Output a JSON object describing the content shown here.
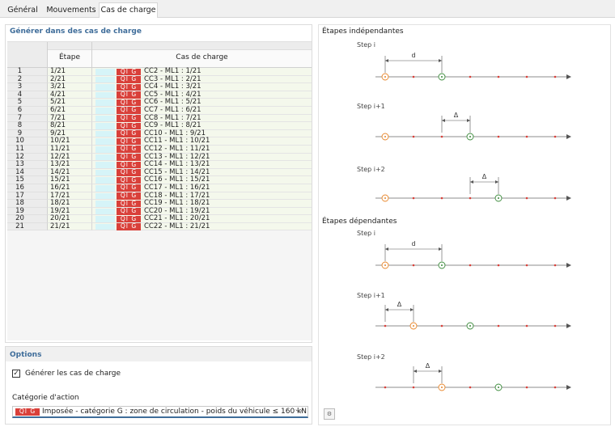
{
  "tabs": [
    {
      "label": "Général",
      "active": false
    },
    {
      "label": "Mouvements",
      "active": false
    },
    {
      "label": "Cas de charge",
      "active": true
    }
  ],
  "generate": {
    "title": "Générer dans des cas de charge",
    "columns": {
      "etape": "Étape",
      "cas": "Cas de charge"
    },
    "badge": "QI G",
    "rows": [
      {
        "num": "1",
        "etape": "1/21",
        "cas": "CC2 - ML1 : 1/21"
      },
      {
        "num": "2",
        "etape": "2/21",
        "cas": "CC3 - ML1 : 2/21"
      },
      {
        "num": "3",
        "etape": "3/21",
        "cas": "CC4 - ML1 : 3/21"
      },
      {
        "num": "4",
        "etape": "4/21",
        "cas": "CC5 - ML1 : 4/21"
      },
      {
        "num": "5",
        "etape": "5/21",
        "cas": "CC6 - ML1 : 5/21"
      },
      {
        "num": "6",
        "etape": "6/21",
        "cas": "CC7 - ML1 : 6/21"
      },
      {
        "num": "7",
        "etape": "7/21",
        "cas": "CC8 - ML1 : 7/21"
      },
      {
        "num": "8",
        "etape": "8/21",
        "cas": "CC9 - ML1 : 8/21"
      },
      {
        "num": "9",
        "etape": "9/21",
        "cas": "CC10 - ML1 : 9/21"
      },
      {
        "num": "10",
        "etape": "10/21",
        "cas": "CC11 - ML1 : 10/21"
      },
      {
        "num": "11",
        "etape": "11/21",
        "cas": "CC12 - ML1 : 11/21"
      },
      {
        "num": "12",
        "etape": "12/21",
        "cas": "CC13 - ML1 : 12/21"
      },
      {
        "num": "13",
        "etape": "13/21",
        "cas": "CC14 - ML1 : 13/21"
      },
      {
        "num": "14",
        "etape": "14/21",
        "cas": "CC15 - ML1 : 14/21"
      },
      {
        "num": "15",
        "etape": "15/21",
        "cas": "CC16 - ML1 : 15/21"
      },
      {
        "num": "16",
        "etape": "16/21",
        "cas": "CC17 - ML1 : 16/21"
      },
      {
        "num": "17",
        "etape": "17/21",
        "cas": "CC18 - ML1 : 17/21"
      },
      {
        "num": "18",
        "etape": "18/21",
        "cas": "CC19 - ML1 : 18/21"
      },
      {
        "num": "19",
        "etape": "19/21",
        "cas": "CC20 - ML1 : 19/21"
      },
      {
        "num": "20",
        "etape": "20/21",
        "cas": "CC21 - ML1 : 20/21"
      },
      {
        "num": "21",
        "etape": "21/21",
        "cas": "CC22 - ML1 : 21/21"
      }
    ]
  },
  "options": {
    "title": "Options",
    "generate_checkbox": {
      "label": "Générer les cas de charge",
      "checked": true
    },
    "category_label": "Catégorie d'action",
    "category_badge": "QI G",
    "category_value": "Imposée - catégorie G : zone de circulation - poids du véhicule ≤ 160 kN"
  },
  "diagrams": {
    "independent_title": "Étapes indépendantes",
    "dependent_title": "Étapes dépendantes",
    "steps": [
      "Step i",
      "Step i+1",
      "Step i+2"
    ],
    "d_label": "d",
    "delta_label": "Δ",
    "colors": {
      "start": "#e8862a",
      "end": "#3a8a3a",
      "tick": "#d9403a",
      "axis": "#666666"
    }
  },
  "icons": {
    "settings": "diagram-settings-icon"
  }
}
